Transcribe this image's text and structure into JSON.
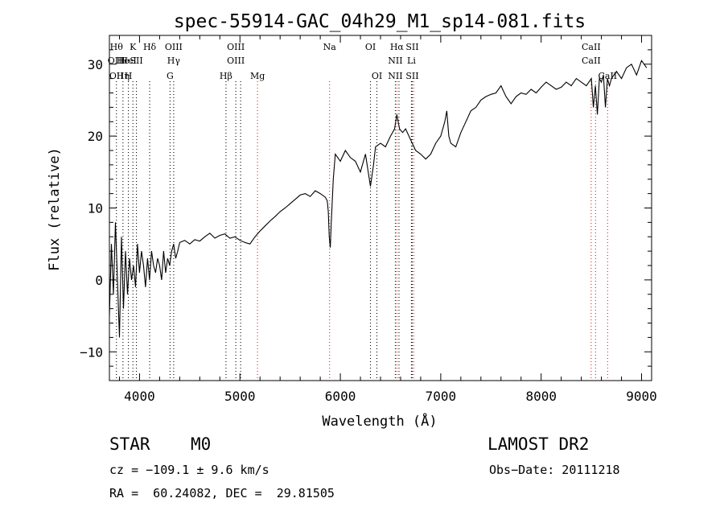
{
  "chart_data": {
    "type": "line",
    "title": "spec-55914-GAC_04h29_M1_sp14-081.fits",
    "xlabel": "Wavelength (Å)",
    "ylabel": "Flux (relative)",
    "xlim": [
      3700,
      9100
    ],
    "ylim": [
      -14,
      34
    ],
    "xticks": [
      4000,
      5000,
      6000,
      7000,
      8000,
      9000
    ],
    "yticks": [
      -10,
      0,
      10,
      20,
      30
    ],
    "ytick_labels": [
      "−10",
      "0",
      "10",
      "20",
      "30"
    ],
    "series": [
      {
        "color": "#000000",
        "x": [
          3700,
          3720,
          3740,
          3760,
          3780,
          3800,
          3820,
          3840,
          3860,
          3880,
          3900,
          3920,
          3940,
          3960,
          3980,
          4000,
          4020,
          4040,
          4060,
          4080,
          4100,
          4120,
          4140,
          4160,
          4180,
          4200,
          4220,
          4240,
          4260,
          4280,
          4300,
          4320,
          4340,
          4360,
          4380,
          4400,
          4450,
          4500,
          4550,
          4600,
          4650,
          4700,
          4750,
          4800,
          4850,
          4900,
          4950,
          5000,
          5050,
          5100,
          5150,
          5200,
          5250,
          5300,
          5350,
          5400,
          5450,
          5500,
          5550,
          5600,
          5650,
          5700,
          5750,
          5800,
          5850,
          5870,
          5880,
          5890,
          5900,
          5910,
          5930,
          5950,
          6000,
          6050,
          6100,
          6150,
          6200,
          6250,
          6300,
          6330,
          6350,
          6400,
          6450,
          6500,
          6540,
          6563,
          6590,
          6620,
          6650,
          6700,
          6750,
          6800,
          6850,
          6900,
          6950,
          7000,
          7040,
          7060,
          7080,
          7100,
          7150,
          7200,
          7250,
          7300,
          7350,
          7400,
          7450,
          7500,
          7550,
          7600,
          7650,
          7700,
          7750,
          7800,
          7850,
          7900,
          7950,
          8000,
          8050,
          8100,
          8150,
          8200,
          8250,
          8300,
          8350,
          8400,
          8450,
          8500,
          8520,
          8540,
          8560,
          8580,
          8600,
          8620,
          8640,
          8660,
          8680,
          8700,
          8750,
          8800,
          8850,
          8900,
          8950,
          9000,
          9050
        ],
        "y": [
          -5,
          5,
          -2,
          8,
          0,
          -8,
          6,
          -4,
          4,
          -2,
          3,
          0,
          2,
          -1,
          5,
          1,
          4,
          2,
          -1,
          3,
          0,
          4,
          2,
          1,
          3,
          2,
          0,
          4,
          1,
          3,
          2,
          4,
          5,
          3,
          4,
          5.2,
          5.5,
          5.0,
          5.6,
          5.4,
          6.0,
          6.5,
          5.8,
          6.2,
          6.4,
          5.8,
          6.0,
          5.5,
          5.2,
          5.0,
          6.0,
          6.8,
          7.5,
          8.2,
          8.8,
          9.5,
          10.0,
          10.6,
          11.2,
          11.8,
          12.0,
          11.6,
          12.4,
          12.0,
          11.5,
          11.0,
          9.5,
          6.0,
          4.5,
          8.0,
          14.0,
          17.5,
          16.5,
          18.0,
          17.0,
          16.5,
          15.0,
          17.5,
          13.0,
          16.0,
          18.5,
          19.0,
          18.5,
          20.0,
          21.0,
          23.0,
          21.0,
          20.5,
          21.0,
          19.5,
          18.0,
          17.5,
          16.8,
          17.5,
          19.0,
          20.0,
          22.0,
          23.5,
          20.0,
          19.0,
          18.5,
          20.5,
          22.0,
          23.5,
          24.0,
          25.0,
          25.5,
          25.8,
          26.0,
          27.0,
          25.5,
          24.5,
          25.5,
          26.0,
          25.8,
          26.5,
          26.0,
          26.8,
          27.5,
          27.0,
          26.5,
          26.8,
          27.5,
          27.0,
          28.0,
          27.5,
          27.0,
          28.0,
          24.0,
          27.0,
          23.0,
          28.0,
          27.5,
          28.5,
          24.0,
          28.0,
          27.0,
          28.0,
          29.0,
          28.0,
          29.5,
          30.0,
          28.5,
          30.5,
          29.5
        ]
      }
    ],
    "lines": [
      {
        "x": 3770,
        "color": "#000000",
        "labels": [
          "Hθ",
          "OIII",
          "OII"
        ]
      },
      {
        "x": 3835,
        "color": "#000000",
        "labels": [
          "",
          "He",
          "Hη"
        ]
      },
      {
        "x": 3889,
        "color": "#000000",
        "labels": [
          "",
          "HeI",
          "H"
        ]
      },
      {
        "x": 3934,
        "color": "#000000",
        "labels": [
          "K",
          "",
          ""
        ]
      },
      {
        "x": 3969,
        "color": "#000000",
        "labels": [
          "",
          "SII",
          ""
        ]
      },
      {
        "x": 4101,
        "color": "#000000",
        "labels": [
          "Hδ",
          "",
          ""
        ]
      },
      {
        "x": 4304,
        "color": "#000000",
        "labels": [
          "",
          "",
          "G"
        ]
      },
      {
        "x": 4340,
        "color": "#000000",
        "labels": [
          "OIII",
          "Hγ",
          ""
        ]
      },
      {
        "x": 4861,
        "color": "#000000",
        "labels": [
          "",
          "",
          "Hβ"
        ]
      },
      {
        "x": 4959,
        "color": "#000000",
        "labels": [
          "OIII",
          "OIII",
          ""
        ]
      },
      {
        "x": 5007,
        "color": "#000000",
        "labels": [
          "",
          "",
          ""
        ]
      },
      {
        "x": 5175,
        "color": "#d62020",
        "labels": [
          "",
          "",
          "Mg"
        ]
      },
      {
        "x": 5893,
        "color": "#d62020",
        "labels": [
          "Na",
          "",
          ""
        ]
      },
      {
        "x": 6300,
        "color": "#000000",
        "labels": [
          "OI",
          "",
          ""
        ]
      },
      {
        "x": 6364,
        "color": "#000000",
        "labels": [
          "",
          "",
          "OI"
        ]
      },
      {
        "x": 6548,
        "color": "#000000",
        "labels": [
          "",
          "NII",
          "NII"
        ]
      },
      {
        "x": 6563,
        "color": "#d62020",
        "labels": [
          "Hα",
          "",
          ""
        ]
      },
      {
        "x": 6584,
        "color": "#000000",
        "labels": [
          "",
          "",
          ""
        ]
      },
      {
        "x": 6708,
        "color": "#000000",
        "labels": [
          "",
          "Li",
          ""
        ]
      },
      {
        "x": 6716,
        "color": "#000000",
        "labels": [
          "SII",
          "",
          "SII"
        ]
      },
      {
        "x": 6731,
        "color": "#d62020",
        "labels": [
          "",
          "",
          ""
        ]
      },
      {
        "x": 8498,
        "color": "#d62020",
        "labels": [
          "CaII",
          "CaII",
          ""
        ]
      },
      {
        "x": 8542,
        "color": "#d62020",
        "labels": [
          "",
          "",
          ""
        ]
      },
      {
        "x": 8662,
        "color": "#d62020",
        "labels": [
          "",
          "",
          "CaII"
        ]
      }
    ]
  },
  "info": {
    "class": "STAR",
    "subclass": "M0",
    "survey": "LAMOST DR2",
    "cz": "cz = −109.1 ± 9.6 km/s",
    "obs_date": "Obs−Date: 20111218",
    "radec": "RA =  60.24082, DEC =  29.81505"
  }
}
